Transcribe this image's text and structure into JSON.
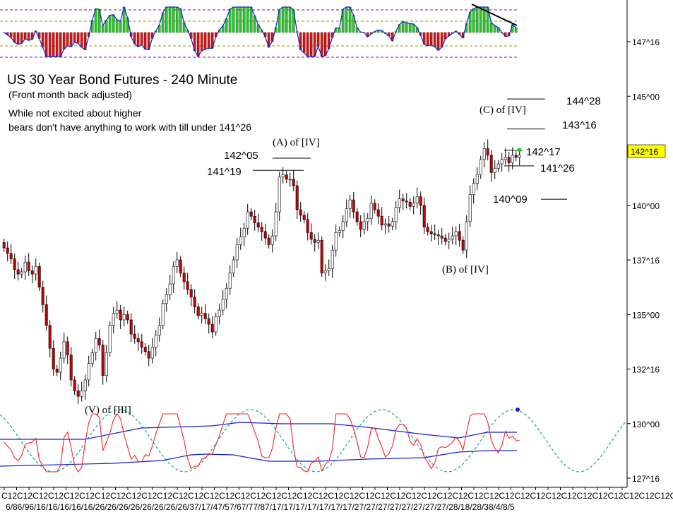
{
  "chart_data": [
    {
      "type": "candlestick",
      "title": "US 30 Year Bond Futures - 240 Minute",
      "subtitle": "(Front month back adjusted)",
      "commentary": [
        "While not excited about higher",
        "bears don't have anything to work with till under 141^26"
      ],
      "y_axis": {
        "ticks": [
          "147^16",
          "145^00",
          "142^16",
          "140^00",
          "137^16",
          "135^00",
          "132^16",
          "130^00",
          "127^16"
        ],
        "tick_values": [
          147.5,
          145.0,
          142.5,
          140.0,
          137.5,
          135.0,
          132.5,
          130.0,
          127.5
        ],
        "range": [
          126.5,
          148.9
        ]
      },
      "current_price": {
        "label": "142^16",
        "value": 142.5,
        "bg": "#ffff00"
      },
      "x_axis": {
        "tick_label_top": "C12C12C12C12C12C12C12C12C12C12C12C12C12C12C12C12C12C12C12C12C12C12C12C12C12C12C12C12C12C12C12C12C12C12C12C12C12C12C12C12C12C12C12C12C12C12C12C12C12C12C12C12C12C12C12C12C12C12C12C12",
        "tick_label_bottom": "6/86/96/16/16/16/16/16/26/26/26/26/26/26/26/26/37/17/47/57/67/77/87/17/17/17/17/17/17/17/27/27/27/27/27/27/27/27/28/18/28/38/4/8/5"
      },
      "closes": [
        138.05,
        137.8,
        137.55,
        137.05,
        136.85,
        136.95,
        137.4,
        137.0,
        136.85,
        137.2,
        136.25,
        135.45,
        134.5,
        133.45,
        132.5,
        132.35,
        133.0,
        133.75,
        133.15,
        132.0,
        131.5,
        131.25,
        131.5,
        132.0,
        132.75,
        133.25,
        133.9,
        133.6,
        132.2,
        133.25,
        134.5,
        135.05,
        135.2,
        134.75,
        135.0,
        134.75,
        134.1,
        133.9,
        133.75,
        133.5,
        133.3,
        133.0,
        133.5,
        134.05,
        134.5,
        135.5,
        135.9,
        136.4,
        137.2,
        137.5,
        136.9,
        136.5,
        136.15,
        135.8,
        135.35,
        134.95,
        135.05,
        134.8,
        134.55,
        134.2,
        134.9,
        135.2,
        135.7,
        136.2,
        136.9,
        137.5,
        138.2,
        138.55,
        138.95,
        139.7,
        139.5,
        139.2,
        139.0,
        138.8,
        138.5,
        138.2,
        138.6,
        139.7,
        141.3,
        141.4,
        141.2,
        141.2,
        140.9,
        139.8,
        139.55,
        139.35,
        138.75,
        138.45,
        138.3,
        138.4,
        136.9,
        137.0,
        137.1,
        137.95,
        138.75,
        138.85,
        139.25,
        139.85,
        140.25,
        139.7,
        139.25,
        138.9,
        139.25,
        139.4,
        140.1,
        139.8,
        139.5,
        139.1,
        139.15,
        139.05,
        139.25,
        139.9,
        140.3,
        140.2,
        140.15,
        139.95,
        140.1,
        140.4,
        140.0,
        139.0,
        138.8,
        138.7,
        138.65,
        138.6,
        138.5,
        138.35,
        138.45,
        138.6,
        138.8,
        138.4,
        137.95,
        139.25,
        140.5,
        141.0,
        141.4,
        142.1,
        142.6,
        142.3,
        141.5,
        141.7,
        141.9,
        142.1,
        142.2,
        141.95,
        142.3,
        142.2,
        142.3
      ],
      "annotations": [
        {
          "text": "(A) of [IV]"
        },
        {
          "text": "(B) of [IV]"
        },
        {
          "text": "(C) of [IV]"
        },
        {
          "text": "(V) of [III]"
        }
      ],
      "levels": [
        {
          "label": "144^28",
          "value": 144.875
        },
        {
          "label": "143^16",
          "value": 143.5
        },
        {
          "label": "142^17",
          "value": 142.53
        },
        {
          "label": "141^26",
          "value": 141.81
        },
        {
          "label": "142^05",
          "value": 142.16
        },
        {
          "label": "141^19",
          "value": 141.6
        },
        {
          "label": "140^09",
          "value": 140.28
        }
      ],
      "colors": {
        "up": "#ffffff",
        "down": "#cc0000",
        "hist_up": "#22cc22",
        "hist_down": "#dd1111",
        "osc_red": "#ff2020",
        "osc_blue": "#1020dd",
        "cycle": "#18a0a0",
        "ref_line": "#9900aa"
      }
    }
  ]
}
